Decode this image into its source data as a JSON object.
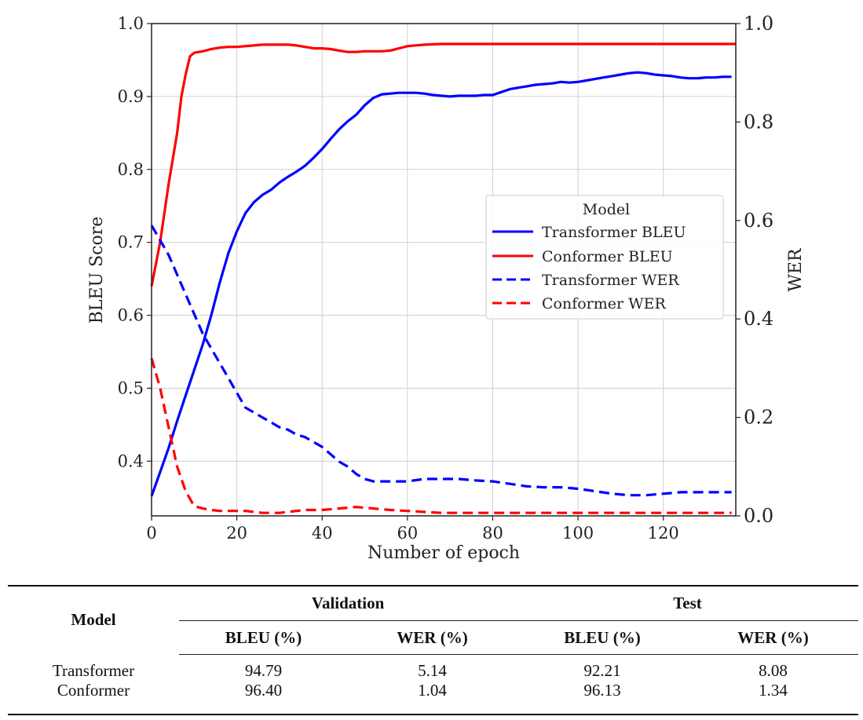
{
  "chart_data": {
    "type": "line",
    "xlabel": "Number of epoch",
    "ylabel": "BLEU Score",
    "y2label": "WER",
    "xlim": [
      0,
      137
    ],
    "ylim": [
      0.325,
      1.0
    ],
    "y2lim": [
      0.0,
      1.0
    ],
    "xticks": [
      "0",
      "20",
      "40",
      "60",
      "80",
      "100",
      "120"
    ],
    "yticks": [
      "0.4",
      "0.5",
      "0.6",
      "0.7",
      "0.8",
      "0.9",
      "1.0"
    ],
    "y2ticks": [
      "0.0",
      "0.2",
      "0.4",
      "0.6",
      "0.8",
      "1.0"
    ],
    "grid": true,
    "legend": {
      "title": "Model",
      "position": "center-right",
      "entries": [
        "Transformer BLEU",
        "Conformer BLEU",
        "Transformer WER",
        "Conformer WER"
      ]
    },
    "series": [
      {
        "name": "Transformer BLEU",
        "axis": "left",
        "color": "#0000ff",
        "dash": "solid",
        "x": [
          0,
          2,
          4,
          6,
          8,
          10,
          12,
          14,
          16,
          18,
          20,
          22,
          24,
          26,
          28,
          30,
          32,
          34,
          36,
          38,
          40,
          42,
          44,
          46,
          48,
          50,
          52,
          54,
          56,
          58,
          60,
          62,
          64,
          66,
          68,
          70,
          72,
          74,
          76,
          78,
          80,
          82,
          84,
          86,
          88,
          90,
          92,
          94,
          96,
          98,
          100,
          102,
          104,
          106,
          108,
          110,
          112,
          114,
          116,
          118,
          120,
          122,
          124,
          126,
          128,
          130,
          132,
          134,
          136
        ],
        "y": [
          0.352,
          0.385,
          0.418,
          0.455,
          0.49,
          0.525,
          0.56,
          0.6,
          0.645,
          0.685,
          0.715,
          0.74,
          0.755,
          0.765,
          0.772,
          0.782,
          0.79,
          0.797,
          0.805,
          0.816,
          0.828,
          0.842,
          0.855,
          0.866,
          0.875,
          0.888,
          0.898,
          0.903,
          0.904,
          0.905,
          0.905,
          0.905,
          0.904,
          0.902,
          0.901,
          0.9,
          0.901,
          0.901,
          0.901,
          0.902,
          0.902,
          0.906,
          0.91,
          0.912,
          0.914,
          0.916,
          0.917,
          0.918,
          0.92,
          0.919,
          0.92,
          0.922,
          0.924,
          0.926,
          0.928,
          0.93,
          0.932,
          0.933,
          0.932,
          0.93,
          0.929,
          0.928,
          0.926,
          0.925,
          0.925,
          0.926,
          0.926,
          0.927,
          0.927
        ]
      },
      {
        "name": "Conformer BLEU",
        "axis": "left",
        "color": "#ff0000",
        "dash": "solid",
        "x": [
          0,
          2,
          4,
          6,
          7,
          8,
          9,
          10,
          12,
          14,
          16,
          18,
          20,
          22,
          24,
          26,
          28,
          30,
          32,
          34,
          36,
          38,
          40,
          42,
          44,
          46,
          48,
          50,
          52,
          54,
          56,
          58,
          60,
          64,
          68,
          72,
          80,
          90,
          100,
          110,
          120,
          130,
          137
        ],
        "y": [
          0.64,
          0.7,
          0.78,
          0.85,
          0.9,
          0.93,
          0.955,
          0.96,
          0.962,
          0.965,
          0.967,
          0.968,
          0.968,
          0.969,
          0.97,
          0.971,
          0.971,
          0.971,
          0.971,
          0.97,
          0.968,
          0.966,
          0.966,
          0.965,
          0.963,
          0.961,
          0.961,
          0.962,
          0.962,
          0.962,
          0.963,
          0.966,
          0.969,
          0.971,
          0.972,
          0.972,
          0.972,
          0.972,
          0.972,
          0.972,
          0.972,
          0.972,
          0.972
        ]
      },
      {
        "name": "Transformer WER",
        "axis": "right",
        "color": "#0000ff",
        "dash": "dashed",
        "x": [
          0,
          2,
          4,
          6,
          8,
          10,
          12,
          14,
          16,
          18,
          20,
          22,
          24,
          26,
          28,
          30,
          32,
          34,
          36,
          38,
          40,
          42,
          44,
          46,
          48,
          50,
          52,
          54,
          56,
          58,
          60,
          64,
          68,
          72,
          76,
          80,
          84,
          88,
          92,
          96,
          100,
          104,
          108,
          112,
          116,
          120,
          124,
          128,
          132,
          136
        ],
        "y": [
          0.59,
          0.56,
          0.53,
          0.49,
          0.45,
          0.41,
          0.37,
          0.34,
          0.31,
          0.28,
          0.25,
          0.22,
          0.21,
          0.2,
          0.19,
          0.18,
          0.175,
          0.165,
          0.16,
          0.15,
          0.14,
          0.125,
          0.11,
          0.1,
          0.085,
          0.075,
          0.07,
          0.07,
          0.07,
          0.07,
          0.07,
          0.075,
          0.075,
          0.075,
          0.072,
          0.07,
          0.065,
          0.06,
          0.058,
          0.058,
          0.055,
          0.05,
          0.045,
          0.042,
          0.042,
          0.045,
          0.048,
          0.048,
          0.048,
          0.048
        ]
      },
      {
        "name": "Conformer WER",
        "axis": "right",
        "color": "#ff0000",
        "dash": "dashed",
        "x": [
          0,
          2,
          4,
          6,
          8,
          10,
          12,
          14,
          16,
          18,
          20,
          22,
          24,
          26,
          28,
          30,
          32,
          34,
          36,
          38,
          40,
          44,
          48,
          52,
          56,
          60,
          64,
          68,
          72,
          80,
          90,
          100,
          110,
          120,
          130,
          136
        ],
        "y": [
          0.32,
          0.26,
          0.18,
          0.1,
          0.05,
          0.02,
          0.015,
          0.012,
          0.01,
          0.01,
          0.01,
          0.01,
          0.008,
          0.006,
          0.006,
          0.006,
          0.008,
          0.01,
          0.012,
          0.012,
          0.012,
          0.015,
          0.018,
          0.015,
          0.012,
          0.01,
          0.008,
          0.006,
          0.006,
          0.006,
          0.006,
          0.006,
          0.006,
          0.006,
          0.006,
          0.006
        ]
      }
    ]
  },
  "table": {
    "model_header": "Model",
    "validation_header": "Validation",
    "test_header": "Test",
    "sub_headers": [
      "BLEU (%)",
      "WER (%)",
      "BLEU (%)",
      "WER (%)"
    ],
    "rows": [
      {
        "model": "Transformer",
        "val_bleu": "94.79",
        "val_wer": "5.14",
        "test_bleu": "92.21",
        "test_wer": "8.08"
      },
      {
        "model": "Conformer",
        "val_bleu": "96.40",
        "val_wer": "1.04",
        "test_bleu": "96.13",
        "test_wer": "1.34"
      }
    ]
  }
}
